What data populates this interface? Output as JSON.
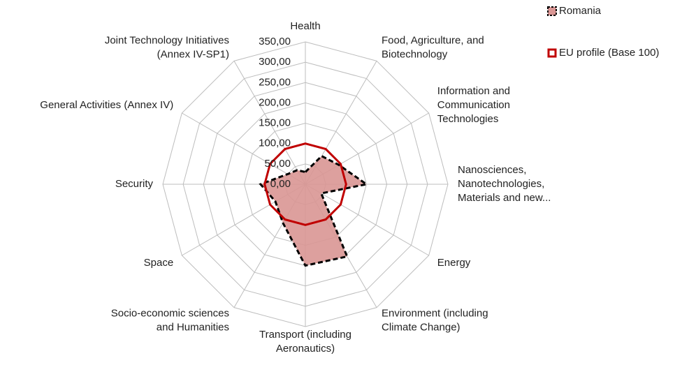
{
  "chart_data": {
    "type": "radar",
    "categories": [
      "Health",
      "Food, Agriculture, and\nBiotechnology",
      "Information and\nCommunication\nTechnologies",
      "Nanosciences,\nNanotechnologies,\nMaterials and new...",
      "Energy",
      "Environment (including\nClimate Change)",
      "Transport (including\nAeronautics)",
      "Socio-economic sciences\nand Humanities",
      "Space",
      "Security",
      "General Activities (Annex IV)",
      "Joint Technology Initiatives\n(Annex IV-SP1)"
    ],
    "series": [
      {
        "name": "Romania",
        "color": "#d99694",
        "values": [
          30,
          80,
          95,
          150,
          45,
          205,
          200,
          110,
          85,
          110,
          50,
          40
        ]
      },
      {
        "name": "EU profile (Base 100)",
        "color": "#c00000",
        "values": [
          100,
          100,
          100,
          100,
          100,
          100,
          100,
          100,
          100,
          100,
          100,
          100
        ]
      }
    ],
    "ylim": [
      0,
      350
    ],
    "yticks": [
      {
        "value": 0,
        "label": "0,00"
      },
      {
        "value": 50,
        "label": "50,00"
      },
      {
        "value": 100,
        "label": "100,00"
      },
      {
        "value": 150,
        "label": "150,00"
      },
      {
        "value": 200,
        "label": "200,00"
      },
      {
        "value": 250,
        "label": "250,00"
      },
      {
        "value": 300,
        "label": "300,00"
      },
      {
        "value": 350,
        "label": "350,00"
      }
    ],
    "grid": true,
    "legend": "top-right"
  }
}
